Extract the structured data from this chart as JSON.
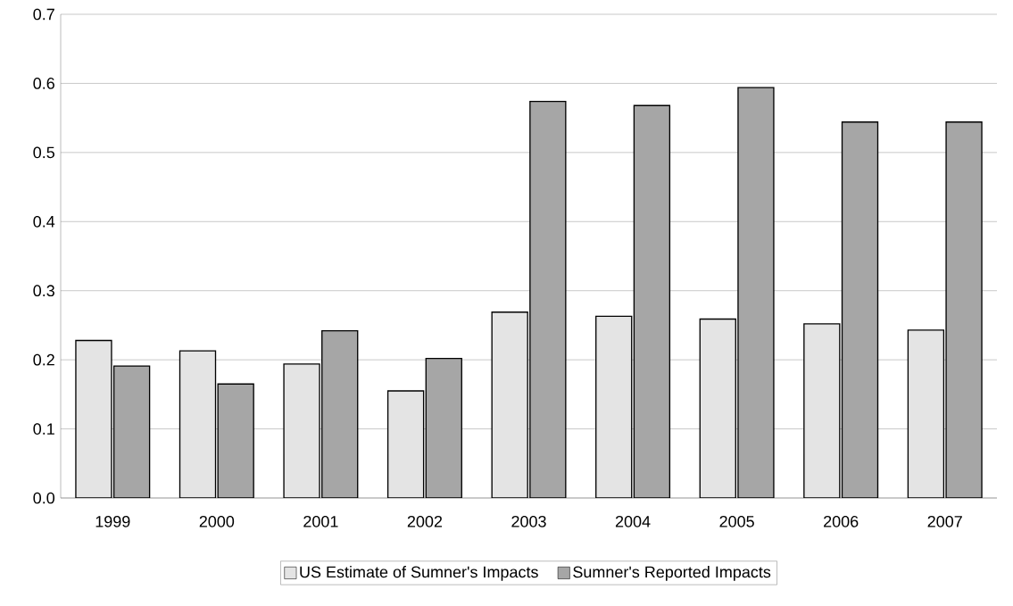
{
  "chart_data": {
    "type": "bar",
    "categories": [
      "1999",
      "2000",
      "2001",
      "2002",
      "2003",
      "2004",
      "2005",
      "2006",
      "2007"
    ],
    "series": [
      {
        "name": "US Estimate of Sumner's Impacts",
        "color": "#e4e4e4",
        "values": [
          0.228,
          0.213,
          0.194,
          0.155,
          0.269,
          0.263,
          0.259,
          0.252,
          0.243
        ]
      },
      {
        "name": "Sumner's Reported Impacts",
        "color": "#a6a6a6",
        "values": [
          0.191,
          0.165,
          0.242,
          0.202,
          0.574,
          0.568,
          0.594,
          0.544,
          0.544
        ]
      }
    ],
    "ylim": [
      0,
      0.7
    ],
    "yticks": [
      {
        "value": 0,
        "label": "0.0"
      },
      0.1,
      0.2,
      0.3,
      0.4,
      0.5,
      0.6,
      0.7
    ],
    "grid": "y",
    "legend": "bottom"
  }
}
